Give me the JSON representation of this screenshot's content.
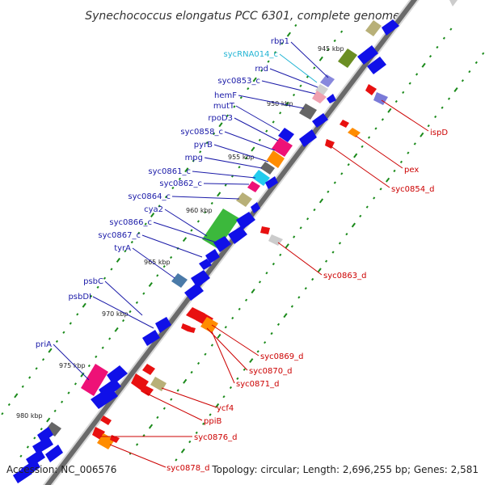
{
  "title": "Synechococcus elongatus PCC 6301, complete genome",
  "footer": {
    "accession": "Accession: NC_006576",
    "summary": "Topology: circular; Length: 2,696,255 bp; Genes: 2,581"
  },
  "kbp_markers": [
    "945 kbp",
    "950 kbp",
    "955 kbp",
    "960 kbp",
    "965 kbp",
    "970 kbp",
    "975 kbp",
    "980 kbp"
  ],
  "labels_left": [
    {
      "text": "rbp1",
      "color": "#1a1aa8"
    },
    {
      "text": "sycRNA014_c",
      "color": "#22b4d4"
    },
    {
      "text": "rnd",
      "color": "#1a1aa8"
    },
    {
      "text": "syc0853_c",
      "color": "#1a1aa8"
    },
    {
      "text": "hemF",
      "color": "#1a1aa8"
    },
    {
      "text": "mutT",
      "color": "#1a1aa8"
    },
    {
      "text": "rpoD3",
      "color": "#1a1aa8"
    },
    {
      "text": "syc0858_c",
      "color": "#1a1aa8"
    },
    {
      "text": "pyrB",
      "color": "#1a1aa8"
    },
    {
      "text": "mpg",
      "color": "#1a1aa8"
    },
    {
      "text": "syc0861_c",
      "color": "#1a1aa8"
    },
    {
      "text": "syc0862_c",
      "color": "#1a1aa8"
    },
    {
      "text": "syc0864_c",
      "color": "#1a1aa8"
    },
    {
      "text": "cya2",
      "color": "#1a1aa8"
    },
    {
      "text": "syc0866_c",
      "color": "#1a1aa8"
    },
    {
      "text": "syc0867_c",
      "color": "#1a1aa8"
    },
    {
      "text": "tyrA",
      "color": "#1a1aa8"
    },
    {
      "text": "psbC",
      "color": "#1a1aa8"
    },
    {
      "text": "psbDI",
      "color": "#1a1aa8"
    },
    {
      "text": "priA",
      "color": "#1a1aa8"
    }
  ],
  "labels_right": [
    {
      "text": "ispD",
      "color": "#cc0000"
    },
    {
      "text": "pex",
      "color": "#cc0000"
    },
    {
      "text": "syc0854_d",
      "color": "#cc0000"
    },
    {
      "text": "syc0863_d",
      "color": "#cc0000"
    },
    {
      "text": "syc0869_d",
      "color": "#cc0000"
    },
    {
      "text": "syc0870_d",
      "color": "#cc0000"
    },
    {
      "text": "syc0871_d",
      "color": "#cc0000"
    },
    {
      "text": "ycf4",
      "color": "#cc0000"
    },
    {
      "text": "ppiB",
      "color": "#cc0000"
    },
    {
      "text": "syc0876_d",
      "color": "#cc0000"
    },
    {
      "text": "syc0878_d",
      "color": "#cc0000"
    }
  ],
  "colors": {
    "backbone": "#808080",
    "reverse_strand": "#1010e8",
    "forward_strand": "#e81010",
    "tick": "#1a8a1a",
    "leader_left": "#1a1aa8",
    "leader_right": "#cc0000"
  }
}
